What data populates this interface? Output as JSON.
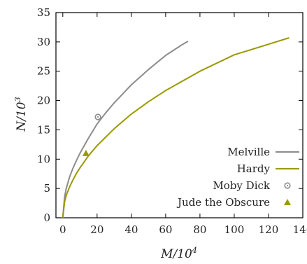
{
  "chart_data": {
    "type": "line",
    "title": "",
    "xlabel": "M/10",
    "xlabel_exp": "4",
    "ylabel": "N/10",
    "ylabel_exp": "3",
    "xlim": [
      -4,
      140
    ],
    "ylim": [
      0,
      35
    ],
    "xticks": [
      0,
      20,
      40,
      60,
      80,
      100,
      120,
      140
    ],
    "yticks": [
      0,
      5,
      10,
      15,
      20,
      25,
      30,
      35
    ],
    "grid": false,
    "legend_position": "bottom-right",
    "series": [
      {
        "name": "Melville",
        "kind": "line",
        "color": "#8c8c8c",
        "x": [
          0,
          1,
          2,
          4,
          6,
          8,
          10,
          15,
          20,
          25,
          30,
          40,
          50,
          60,
          70,
          73
        ],
        "y": [
          0,
          3.5,
          5.0,
          7.0,
          8.5,
          9.8,
          11.0,
          13.6,
          16.0,
          17.9,
          19.6,
          22.7,
          25.3,
          27.7,
          29.6,
          30.1
        ]
      },
      {
        "name": "Hardy",
        "kind": "line",
        "color": "#9a9a00",
        "x": [
          0,
          1,
          2,
          4,
          6,
          8,
          10,
          15,
          20,
          30,
          40,
          50,
          60,
          80,
          100,
          120,
          132
        ],
        "y": [
          0,
          2.7,
          3.8,
          5.3,
          6.5,
          7.6,
          8.5,
          10.6,
          12.3,
          15.2,
          17.7,
          19.8,
          21.7,
          25.0,
          27.8,
          29.6,
          30.7
        ]
      },
      {
        "name": "Moby Dick",
        "kind": "marker",
        "marker": "circle-dot",
        "color": "#8c8c8c",
        "x": [
          20.5
        ],
        "y": [
          17.2
        ]
      },
      {
        "name": "Jude the Obscure",
        "kind": "marker",
        "marker": "triangle",
        "color": "#9a9a00",
        "x": [
          13.5
        ],
        "y": [
          11.0
        ]
      }
    ]
  }
}
